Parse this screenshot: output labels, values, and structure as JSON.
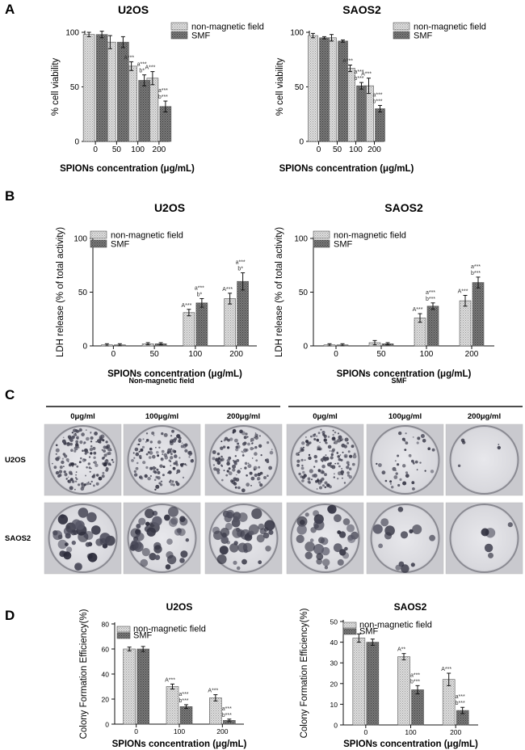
{
  "colors": {
    "nonmag": "#d4d4d4",
    "smf": "#6e6e6e",
    "axis": "#111111"
  },
  "panel_letters": [
    "A",
    "B",
    "C",
    "D"
  ],
  "chart_data": [
    {
      "id": "A-U2OS",
      "type": "bar",
      "title": "U2OS",
      "xlabel": "SPIONs concentration (μg/mL)",
      "ylabel": "% cell viability",
      "categories": [
        "0",
        "50",
        "100",
        "200"
      ],
      "ylim": [
        0,
        100
      ],
      "yticks": [
        0,
        50,
        100
      ],
      "legend": "top-right",
      "series": [
        {
          "name": "non-magnetic field",
          "values": [
            98,
            91,
            69,
            58
          ],
          "errors": [
            2,
            6,
            4,
            6
          ]
        },
        {
          "name": "SMF",
          "values": [
            98,
            91,
            56,
            32
          ],
          "errors": [
            3,
            5,
            5,
            5
          ]
        }
      ],
      "annotations": [
        {
          "category": "100",
          "series": 0,
          "text": "A***"
        },
        {
          "category": "100",
          "series": 1,
          "text": "a***"
        },
        {
          "category": "100",
          "series": 1,
          "text": "b*"
        },
        {
          "category": "200",
          "series": 0,
          "text": "A***"
        },
        {
          "category": "200",
          "series": 1,
          "text": "a***"
        },
        {
          "category": "200",
          "series": 1,
          "text": "b***"
        }
      ]
    },
    {
      "id": "A-SAOS2",
      "type": "bar",
      "title": "SAOS2",
      "xlabel": "SPIONs concentration (μg/mL)",
      "ylabel": "% cell viability",
      "categories": [
        "0",
        "50",
        "100",
        "200"
      ],
      "ylim": [
        0,
        100
      ],
      "yticks": [
        0,
        50,
        100
      ],
      "legend": "top-right",
      "series": [
        {
          "name": "non-magnetic field",
          "values": [
            97,
            95,
            67,
            51
          ],
          "errors": [
            2,
            3,
            3,
            7
          ]
        },
        {
          "name": "SMF",
          "values": [
            95,
            92,
            51,
            30
          ],
          "errors": [
            1,
            1,
            3,
            3
          ]
        }
      ],
      "annotations": [
        {
          "category": "100",
          "series": 0,
          "text": "A***"
        },
        {
          "category": "100",
          "series": 1,
          "text": "a***"
        },
        {
          "category": "100",
          "series": 1,
          "text": "b***"
        },
        {
          "category": "200",
          "series": 0,
          "text": "A***"
        },
        {
          "category": "200",
          "series": 1,
          "text": "a***"
        },
        {
          "category": "200",
          "series": 1,
          "text": "b***"
        }
      ]
    },
    {
      "id": "B-U2OS",
      "type": "bar",
      "title": "U2OS",
      "xlabel": "SPIONs concentration (μg/mL)",
      "ylabel": "LDH release (% of total activity)",
      "categories": [
        "0",
        "50",
        "100",
        "200"
      ],
      "ylim": [
        0,
        100
      ],
      "yticks": [
        0,
        50,
        100
      ],
      "legend": "top-left",
      "series": [
        {
          "name": "non-magnetic field",
          "values": [
            1,
            2,
            31,
            44
          ],
          "errors": [
            1,
            1,
            3,
            5
          ]
        },
        {
          "name": "SMF",
          "values": [
            1,
            2,
            40,
            60
          ],
          "errors": [
            1,
            1,
            4,
            8
          ]
        }
      ],
      "annotations": [
        {
          "category": "100",
          "series": 0,
          "text": "A***"
        },
        {
          "category": "100",
          "series": 1,
          "text": "a***"
        },
        {
          "category": "100",
          "series": 1,
          "text": "b*"
        },
        {
          "category": "200",
          "series": 0,
          "text": "A***"
        },
        {
          "category": "200",
          "series": 1,
          "text": "a***"
        },
        {
          "category": "200",
          "series": 1,
          "text": "b*"
        }
      ]
    },
    {
      "id": "B-SAOS2",
      "type": "bar",
      "title": "SAOS2",
      "xlabel": "SPIONs concentration (μg/mL)",
      "ylabel": "LDH release (% of total activity)",
      "categories": [
        "0",
        "50",
        "100",
        "200"
      ],
      "ylim": [
        0,
        100
      ],
      "yticks": [
        0,
        50,
        100
      ],
      "legend": "top-left",
      "series": [
        {
          "name": "non-magnetic field",
          "values": [
            1,
            3,
            26,
            42
          ],
          "errors": [
            1,
            2,
            4,
            5
          ]
        },
        {
          "name": "SMF",
          "values": [
            1,
            2,
            37,
            59
          ],
          "errors": [
            1,
            1,
            3,
            5
          ]
        }
      ],
      "annotations": [
        {
          "category": "100",
          "series": 0,
          "text": "A***"
        },
        {
          "category": "100",
          "series": 1,
          "text": "a***"
        },
        {
          "category": "100",
          "series": 1,
          "text": "b***"
        },
        {
          "category": "200",
          "series": 0,
          "text": "A***"
        },
        {
          "category": "200",
          "series": 1,
          "text": "a***"
        },
        {
          "category": "200",
          "series": 1,
          "text": "b***"
        }
      ]
    },
    {
      "id": "D-U2OS",
      "type": "bar",
      "title": "U2OS",
      "xlabel": "SPIONs concentration (μg/mL)",
      "ylabel": "Colony Formation Efficiency(%)",
      "categories": [
        "0",
        "100",
        "200"
      ],
      "ylim": [
        0,
        80
      ],
      "yticks": [
        0,
        20,
        40,
        60,
        80
      ],
      "legend": "top-left",
      "series": [
        {
          "name": "non-magnetic field",
          "values": [
            60,
            30,
            21
          ],
          "errors": [
            1.5,
            2,
            2.5
          ]
        },
        {
          "name": "SMF",
          "values": [
            60,
            14,
            3
          ],
          "errors": [
            2,
            1.5,
            1
          ]
        }
      ],
      "annotations": [
        {
          "category": "100",
          "series": 0,
          "text": "A***"
        },
        {
          "category": "100",
          "series": 1,
          "text": "a***"
        },
        {
          "category": "100",
          "series": 1,
          "text": "b***"
        },
        {
          "category": "200",
          "series": 0,
          "text": "A***"
        },
        {
          "category": "200",
          "series": 1,
          "text": "a***"
        },
        {
          "category": "200",
          "series": 1,
          "text": "b***"
        }
      ]
    },
    {
      "id": "D-SAOS2",
      "type": "bar",
      "title": "SAOS2",
      "xlabel": "SPIONs concentration (μg/mL)",
      "ylabel": "Colony Formation Efficiency(%)",
      "categories": [
        "0",
        "100",
        "200"
      ],
      "ylim": [
        0,
        50
      ],
      "yticks": [
        0,
        10,
        20,
        30,
        40,
        50
      ],
      "legend": "top-left",
      "series": [
        {
          "name": "non-magnetic field",
          "values": [
            42,
            33,
            22
          ],
          "errors": [
            2,
            1.5,
            3
          ]
        },
        {
          "name": "SMF",
          "values": [
            40,
            17,
            7
          ],
          "errors": [
            1.5,
            2,
            1.5
          ]
        }
      ],
      "annotations": [
        {
          "category": "100",
          "series": 0,
          "text": "A**"
        },
        {
          "category": "100",
          "series": 1,
          "text": "a***"
        },
        {
          "category": "100",
          "series": 1,
          "text": "b***"
        },
        {
          "category": "200",
          "series": 0,
          "text": "A***"
        },
        {
          "category": "200",
          "series": 1,
          "text": "a***"
        },
        {
          "category": "200",
          "series": 1,
          "text": "b***"
        }
      ]
    }
  ],
  "panel_c": {
    "condition_labels": [
      "Non-magnetic field",
      "SMF"
    ],
    "concentrations": [
      "0μg/ml",
      "100μg/ml",
      "200μg/ml",
      "0μg/ml",
      "100μg/ml",
      "200μg/ml"
    ],
    "rows": [
      "U2OS",
      "SAOS2"
    ],
    "density": [
      [
        0.95,
        0.75,
        0.65,
        0.85,
        0.25,
        0.03
      ],
      [
        0.9,
        0.9,
        0.95,
        0.8,
        0.3,
        0.1
      ]
    ]
  }
}
